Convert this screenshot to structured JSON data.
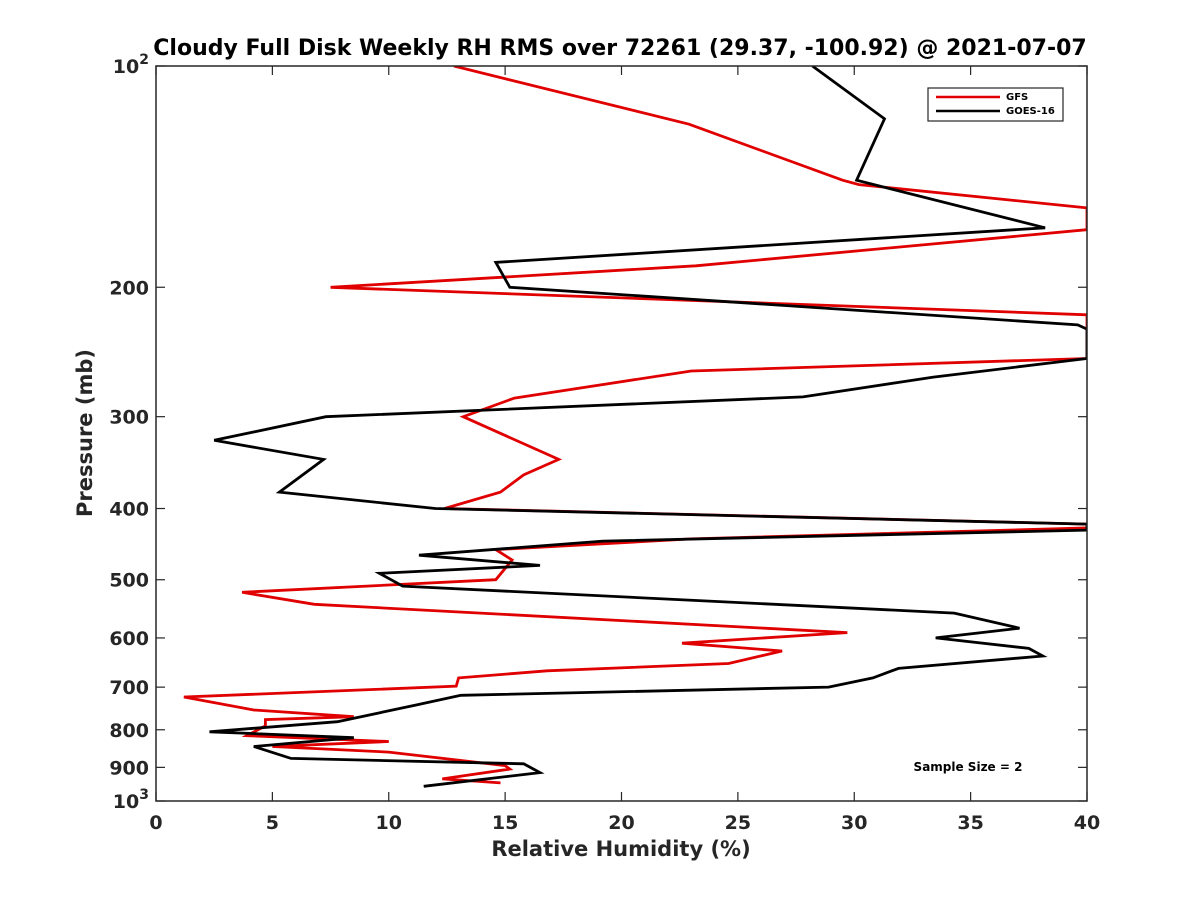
{
  "chart_data": {
    "type": "line",
    "title": "Cloudy Full Disk Weekly RH RMS over 72261 (29.37, -100.92) @ 2021-07-07",
    "xlabel": "Relative Humidity (%)",
    "ylabel": "Pressure (mb)",
    "xlim": [
      0,
      40
    ],
    "ylim": [
      100,
      1000
    ],
    "y_scale": "log",
    "y_reversed": true,
    "grid": false,
    "legend_position": "top-right",
    "x_ticks": [
      0,
      5,
      10,
      15,
      20,
      25,
      30,
      35,
      40
    ],
    "x_tick_labels": [
      "0",
      "5",
      "10",
      "15",
      "20",
      "25",
      "30",
      "35",
      "40"
    ],
    "y_ticks": [
      100,
      200,
      300,
      400,
      500,
      600,
      700,
      800,
      900,
      1000
    ],
    "y_tick_labels": [
      {
        "base": "10",
        "exp": "2"
      },
      {
        "base": "200",
        "exp": ""
      },
      {
        "base": "300",
        "exp": ""
      },
      {
        "base": "400",
        "exp": ""
      },
      {
        "base": "500",
        "exp": ""
      },
      {
        "base": "600",
        "exp": ""
      },
      {
        "base": "700",
        "exp": ""
      },
      {
        "base": "800",
        "exp": ""
      },
      {
        "base": "900",
        "exp": ""
      },
      {
        "base": "10",
        "exp": "3"
      }
    ],
    "annotation": "Sample Size = 2",
    "series": [
      {
        "name": "GFS",
        "color": "#e00000",
        "points": [
          [
            12.8,
            100
          ],
          [
            22.9,
            120
          ],
          [
            29.5,
            143
          ],
          [
            30.2,
            145
          ],
          [
            40,
            156
          ],
          [
            40,
            167
          ],
          [
            23.2,
            187
          ],
          [
            7.5,
            200
          ],
          [
            40,
            218
          ],
          [
            40,
            250
          ],
          [
            23,
            260
          ],
          [
            15.4,
            283
          ],
          [
            13.2,
            300
          ],
          [
            17.3,
            343
          ],
          [
            15.8,
            360
          ],
          [
            14.8,
            380
          ],
          [
            12.4,
            400
          ],
          [
            40,
            420
          ],
          [
            40,
            425
          ],
          [
            23,
            440
          ],
          [
            14.6,
            455
          ],
          [
            15.3,
            470
          ],
          [
            14.6,
            500
          ],
          [
            3.7,
            520
          ],
          [
            6.8,
            540
          ],
          [
            29.7,
            590
          ],
          [
            22.6,
            610
          ],
          [
            26.9,
            625
          ],
          [
            24.6,
            650
          ],
          [
            16.8,
            665
          ],
          [
            13,
            680
          ],
          [
            12.9,
            698
          ],
          [
            1.2,
            722
          ],
          [
            4.2,
            752
          ],
          [
            8.5,
            768
          ],
          [
            4.7,
            775
          ],
          [
            4.7,
            790
          ],
          [
            3.9,
            815
          ],
          [
            10,
            830
          ],
          [
            5,
            843
          ],
          [
            10,
            858
          ],
          [
            15,
            895
          ],
          [
            15.2,
            905
          ],
          [
            12.3,
            933
          ],
          [
            14.8,
            945
          ]
        ]
      },
      {
        "name": "GOES-16",
        "color": "#000000",
        "points": [
          [
            28.2,
            100
          ],
          [
            31.3,
            118
          ],
          [
            30.1,
            143
          ],
          [
            38.2,
            166
          ],
          [
            14.6,
            185
          ],
          [
            15.2,
            200
          ],
          [
            39.6,
            225
          ],
          [
            40,
            228
          ],
          [
            40,
            250
          ],
          [
            33.4,
            265
          ],
          [
            27.8,
            282
          ],
          [
            7.3,
            300
          ],
          [
            2.5,
            323
          ],
          [
            7.2,
            343
          ],
          [
            5.3,
            380
          ],
          [
            12,
            400
          ],
          [
            40,
            420
          ],
          [
            40,
            428
          ],
          [
            19.2,
            443
          ],
          [
            11.3,
            463
          ],
          [
            16.5,
            478
          ],
          [
            9.6,
            490
          ],
          [
            10.6,
            510
          ],
          [
            34.3,
            555
          ],
          [
            37.1,
            582
          ],
          [
            33.5,
            600
          ],
          [
            37.5,
            620
          ],
          [
            38.1,
            635
          ],
          [
            31.9,
            660
          ],
          [
            30.8,
            680
          ],
          [
            28.9,
            700
          ],
          [
            13.1,
            718
          ],
          [
            11.2,
            740
          ],
          [
            7.8,
            780
          ],
          [
            2.3,
            805
          ],
          [
            8.5,
            820
          ],
          [
            4.2,
            843
          ],
          [
            5.8,
            875
          ],
          [
            15.8,
            890
          ],
          [
            16.5,
            915
          ],
          [
            11.5,
            955
          ]
        ]
      }
    ]
  }
}
